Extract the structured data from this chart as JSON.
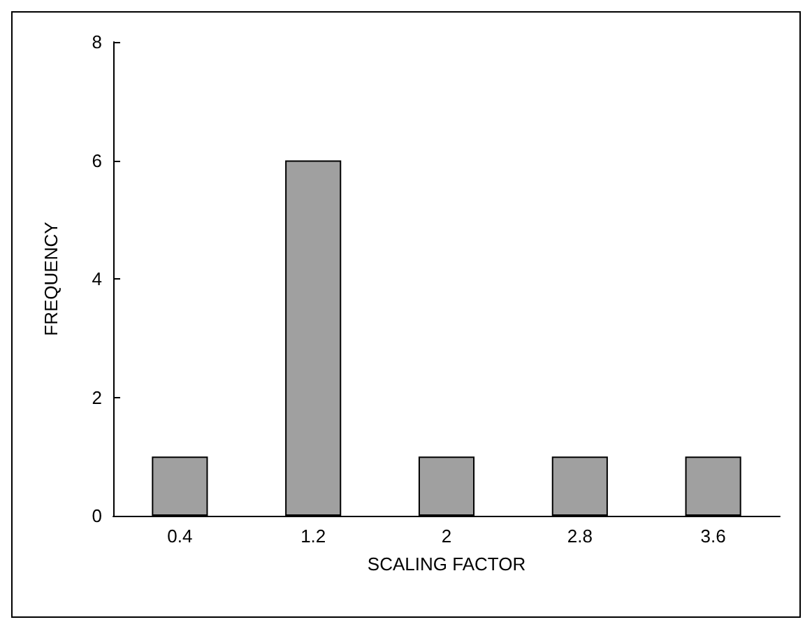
{
  "chart_data": {
    "type": "bar",
    "xlabel": "SCALING FACTOR",
    "ylabel": "FREQUENCY",
    "categories": [
      "0.4",
      "1.2",
      "2",
      "2.8",
      "3.6"
    ],
    "values": [
      1,
      6,
      1,
      1,
      1
    ],
    "color": "#a0a0a0",
    "ylim": [
      0,
      8
    ],
    "yticks": [
      0,
      2,
      4,
      6,
      8
    ],
    "grid": false
  }
}
